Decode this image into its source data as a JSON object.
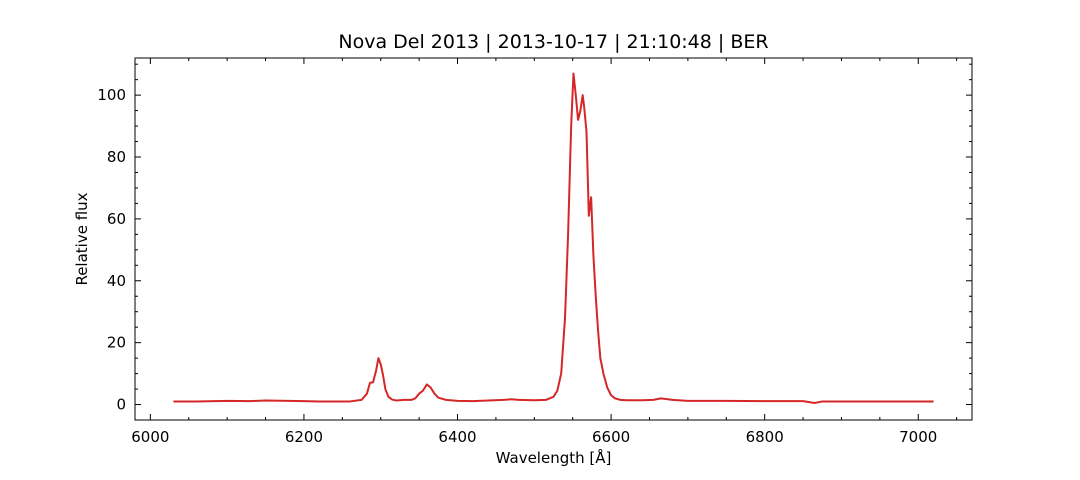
{
  "chart_data": {
    "type": "line",
    "title": "Nova Del 2013 | 2013-10-17 | 21:10:48 | BER",
    "xlabel": "Wavelength [Å]",
    "ylabel": "Relative flux",
    "xlim": [
      5980,
      7070
    ],
    "ylim": [
      -5,
      112
    ],
    "xticks": [
      6000,
      6200,
      6400,
      6600,
      6800,
      7000
    ],
    "yticks": [
      0,
      20,
      40,
      60,
      80,
      100
    ],
    "x_minor_step": 50,
    "y_minor_step": 5,
    "grid": false,
    "tick_direction": "in",
    "series": [
      {
        "color": "#d62728",
        "points": [
          [
            6030,
            1.0
          ],
          [
            6060,
            1.0
          ],
          [
            6100,
            1.2
          ],
          [
            6130,
            1.1
          ],
          [
            6150,
            1.3
          ],
          [
            6180,
            1.2
          ],
          [
            6200,
            1.1
          ],
          [
            6220,
            1.0
          ],
          [
            6240,
            1.0
          ],
          [
            6260,
            1.0
          ],
          [
            6275,
            1.5
          ],
          [
            6282,
            3.5
          ],
          [
            6286,
            7.0
          ],
          [
            6290,
            7.2
          ],
          [
            6294,
            11.0
          ],
          [
            6297,
            15.0
          ],
          [
            6300,
            13.0
          ],
          [
            6303,
            9.5
          ],
          [
            6306,
            5.0
          ],
          [
            6310,
            2.5
          ],
          [
            6315,
            1.6
          ],
          [
            6320,
            1.3
          ],
          [
            6330,
            1.5
          ],
          [
            6340,
            1.5
          ],
          [
            6345,
            2.0
          ],
          [
            6350,
            3.5
          ],
          [
            6355,
            4.5
          ],
          [
            6360,
            6.5
          ],
          [
            6365,
            5.5
          ],
          [
            6370,
            3.5
          ],
          [
            6375,
            2.2
          ],
          [
            6385,
            1.5
          ],
          [
            6400,
            1.2
          ],
          [
            6420,
            1.1
          ],
          [
            6440,
            1.3
          ],
          [
            6460,
            1.5
          ],
          [
            6470,
            1.7
          ],
          [
            6480,
            1.5
          ],
          [
            6500,
            1.4
          ],
          [
            6515,
            1.5
          ],
          [
            6525,
            2.5
          ],
          [
            6530,
            4.5
          ],
          [
            6535,
            10.0
          ],
          [
            6540,
            28.0
          ],
          [
            6544,
            55.0
          ],
          [
            6548,
            90.0
          ],
          [
            6551,
            107.0
          ],
          [
            6554,
            100.0
          ],
          [
            6557,
            92.0
          ],
          [
            6560,
            95.0
          ],
          [
            6563,
            100.0
          ],
          [
            6565,
            96.0
          ],
          [
            6568,
            88.0
          ],
          [
            6571,
            61.0
          ],
          [
            6574,
            67.0
          ],
          [
            6577,
            48.0
          ],
          [
            6580,
            35.0
          ],
          [
            6583,
            24.0
          ],
          [
            6586,
            15.0
          ],
          [
            6590,
            10.0
          ],
          [
            6595,
            5.5
          ],
          [
            6600,
            3.0
          ],
          [
            6605,
            2.0
          ],
          [
            6612,
            1.5
          ],
          [
            6620,
            1.4
          ],
          [
            6640,
            1.4
          ],
          [
            6655,
            1.5
          ],
          [
            6665,
            2.0
          ],
          [
            6680,
            1.5
          ],
          [
            6700,
            1.2
          ],
          [
            6750,
            1.2
          ],
          [
            6800,
            1.1
          ],
          [
            6850,
            1.1
          ],
          [
            6865,
            0.5
          ],
          [
            6875,
            1.0
          ],
          [
            6900,
            1.0
          ],
          [
            6950,
            1.0
          ],
          [
            7000,
            1.0
          ],
          [
            7020,
            1.0
          ]
        ]
      }
    ]
  }
}
